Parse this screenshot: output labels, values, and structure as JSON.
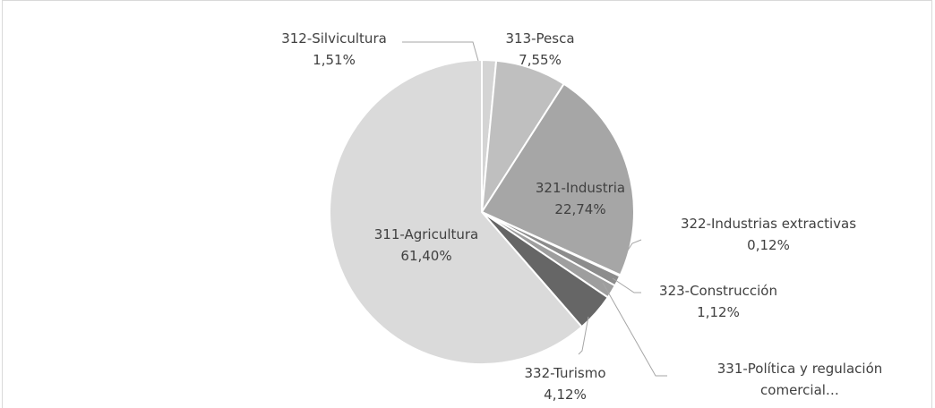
{
  "chart_data": {
    "type": "pie",
    "categories": [
      "312-Silvicultura",
      "313-Pesca",
      "321-Industria",
      "322-Industrias extractivas",
      "323-Construcción",
      "331-Política y regulación comercial…",
      "332-Turismo",
      "311-Agricultura"
    ],
    "values": [
      1.51,
      7.55,
      22.74,
      0.12,
      1.12,
      1.44,
      4.12,
      61.4
    ],
    "value_labels": [
      "1,51%",
      "7,55%",
      "22,74%",
      "0,12%",
      "1,12%",
      null,
      "4,12%",
      "61,40%"
    ],
    "colors": [
      "#d4d4d4",
      "#bfbfbf",
      "#a6a6a6",
      "#7f7f7f",
      "#8c8c8c",
      "#9e9e9e",
      "#666666",
      "#dadada"
    ]
  }
}
